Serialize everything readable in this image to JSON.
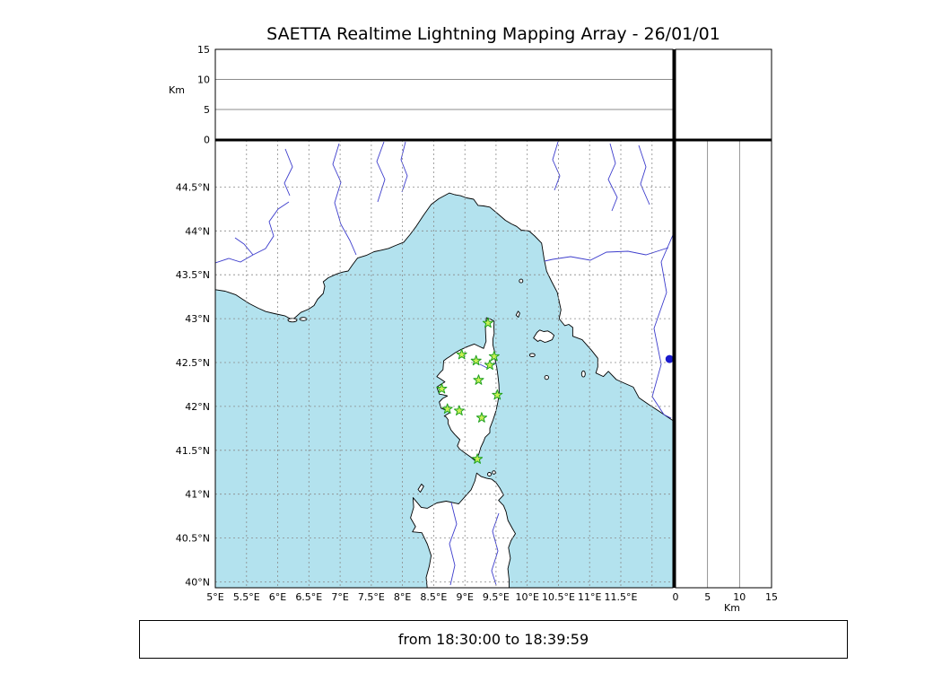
{
  "title": "SAETTA Realtime Lightning Mapping Array - 26/01/01",
  "status_bar": {
    "text": "from 18:30:00 to 18:39:59"
  },
  "chart_data": {
    "type": "scatter",
    "title": "SAETTA Realtime Lightning Mapping Array - 26/01/01",
    "date": "26/01/01",
    "time_window": {
      "from": "18:30:00",
      "to": "18:39:59"
    },
    "map_panel": {
      "region": "Corsica, Ligurian and Tyrrhenian Seas, southern France coast, northwest Italy coast, northern Sardinia",
      "lon_range_deg_e": [
        5,
        12.33
      ],
      "lat_range_deg_n": [
        39.93,
        45.03
      ],
      "grid": "dashed 0.5 degree graticule",
      "lon_ticks": [
        {
          "value": 5,
          "label": "5°E"
        },
        {
          "value": 5.5,
          "label": "5.5°E"
        },
        {
          "value": 6,
          "label": "6°E"
        },
        {
          "value": 6.5,
          "label": "6.5°E"
        },
        {
          "value": 7,
          "label": "7°E"
        },
        {
          "value": 7.5,
          "label": "7.5°E"
        },
        {
          "value": 8,
          "label": "8°E"
        },
        {
          "value": 8.5,
          "label": "8.5°E"
        },
        {
          "value": 9,
          "label": "9°E"
        },
        {
          "value": 9.5,
          "label": "9.5°E"
        },
        {
          "value": 10,
          "label": "10°E"
        },
        {
          "value": 10.5,
          "label": "10.5°E"
        },
        {
          "value": 11,
          "label": "11°E"
        },
        {
          "value": 11.5,
          "label": "11.5°E"
        }
      ],
      "lat_ticks": [
        {
          "value": 44.5,
          "label": "44.5°N"
        },
        {
          "value": 44,
          "label": "44°N"
        },
        {
          "value": 43.5,
          "label": "43.5°N"
        },
        {
          "value": 43,
          "label": "43°N"
        },
        {
          "value": 42.5,
          "label": "42.5°N"
        },
        {
          "value": 42,
          "label": "42°N"
        },
        {
          "value": 41.5,
          "label": "41.5°N"
        },
        {
          "value": 41,
          "label": "41°N"
        },
        {
          "value": 40.5,
          "label": "40.5°N"
        },
        {
          "value": 40,
          "label": "40°N"
        }
      ],
      "lon_grid_values": [
        5,
        5.5,
        6,
        6.5,
        7,
        7.5,
        8,
        8.5,
        9,
        9.5,
        10,
        10.5,
        11,
        11.5,
        12
      ],
      "lat_grid_values": [
        40,
        40.5,
        41,
        41.5,
        42,
        42.5,
        43,
        43.5,
        44,
        44.5
      ]
    },
    "altitude_axis": {
      "unit": "Km",
      "range_km": [
        0,
        15
      ],
      "ticks": [
        {
          "value": 0,
          "label": "0"
        },
        {
          "value": 5,
          "label": "5"
        },
        {
          "value": 10,
          "label": "10"
        },
        {
          "value": 15,
          "label": "15"
        }
      ],
      "grid_values": [
        5,
        10
      ]
    },
    "stations": [
      {
        "lon": 9.37,
        "lat": 42.95
      },
      {
        "lon": 8.95,
        "lat": 42.59
      },
      {
        "lon": 9.18,
        "lat": 42.52
      },
      {
        "lon": 9.4,
        "lat": 42.47
      },
      {
        "lon": 9.47,
        "lat": 42.57
      },
      {
        "lon": 9.22,
        "lat": 42.3
      },
      {
        "lon": 8.63,
        "lat": 42.2
      },
      {
        "lon": 9.52,
        "lat": 42.13
      },
      {
        "lon": 8.72,
        "lat": 41.97
      },
      {
        "lon": 8.91,
        "lat": 41.95
      },
      {
        "lon": 9.27,
        "lat": 41.87
      },
      {
        "lon": 9.2,
        "lat": 41.4
      }
    ],
    "station_marker": {
      "shape": "star",
      "fill": "#c8f055",
      "stroke": "#1fa11f"
    },
    "data_point": {
      "lon": 12.28,
      "lat": 42.54,
      "color": "#1a1acc"
    }
  },
  "colors": {
    "sea": "#b3e2ee",
    "land": "#ffffff",
    "coastline": "#000000",
    "river": "#3c3ccc",
    "grid": "#8a8a8a",
    "frame": "#000000",
    "background": "#ffffff"
  }
}
